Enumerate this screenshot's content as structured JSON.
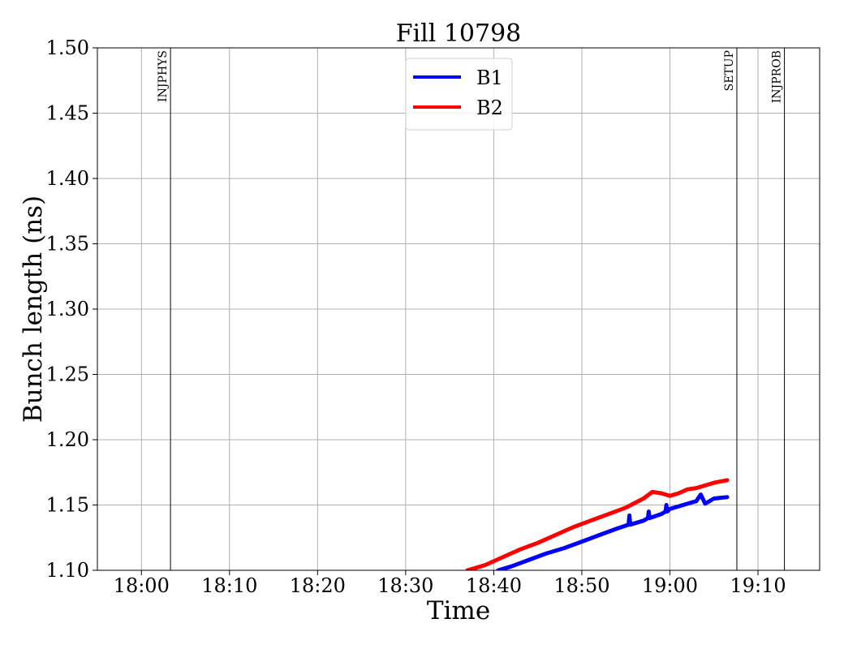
{
  "chart_data": {
    "type": "line",
    "title": "Fill 10798",
    "xlabel": "Time",
    "ylabel": "Bunch length (ns)",
    "x_range": [
      "17:55",
      "19:17"
    ],
    "ylim": [
      1.1,
      1.5
    ],
    "x_ticks": [
      "18:00",
      "18:10",
      "18:20",
      "18:30",
      "18:40",
      "18:50",
      "19:00",
      "19:10"
    ],
    "y_ticks": [
      "1.10",
      "1.15",
      "1.20",
      "1.25",
      "1.30",
      "1.35",
      "1.40",
      "1.45",
      "1.50"
    ],
    "grid": true,
    "legend_position": "top-center",
    "events": [
      {
        "label": "INJPHYS",
        "time": "18:03.3"
      },
      {
        "label": "SETUP",
        "time": "19:07.6"
      },
      {
        "label": "INJPROB",
        "time": "19:13.0"
      }
    ],
    "series": [
      {
        "name": "B1",
        "color": "#0000ff",
        "points": [
          [
            "18:40.5",
            1.1
          ],
          [
            "18:42",
            1.103
          ],
          [
            "18:44",
            1.108
          ],
          [
            "18:46",
            1.113
          ],
          [
            "18:48",
            1.117
          ],
          [
            "18:50",
            1.122
          ],
          [
            "18:52",
            1.127
          ],
          [
            "18:54",
            1.132
          ],
          [
            "18:55.3",
            1.135
          ],
          [
            "18:55.4",
            1.142
          ],
          [
            "18:55.5",
            1.135
          ],
          [
            "18:57",
            1.138
          ],
          [
            "18:57.5",
            1.14
          ],
          [
            "18:57.6",
            1.145
          ],
          [
            "18:57.7",
            1.14
          ],
          [
            "18:59",
            1.143
          ],
          [
            "18:59.5",
            1.145
          ],
          [
            "18:59.6",
            1.15
          ],
          [
            "18:59.7",
            1.145
          ],
          [
            "19:00",
            1.147
          ],
          [
            "19:01",
            1.149
          ],
          [
            "19:02",
            1.151
          ],
          [
            "19:03",
            1.153
          ],
          [
            "19:03.5",
            1.158
          ],
          [
            "19:04",
            1.151
          ],
          [
            "19:05",
            1.155
          ],
          [
            "19:06.5",
            1.156
          ]
        ]
      },
      {
        "name": "B2",
        "color": "#ff0000",
        "points": [
          [
            "18:37",
            1.1
          ],
          [
            "18:39",
            1.104
          ],
          [
            "18:41",
            1.11
          ],
          [
            "18:43",
            1.116
          ],
          [
            "18:45",
            1.121
          ],
          [
            "18:47",
            1.127
          ],
          [
            "18:49",
            1.133
          ],
          [
            "18:51",
            1.138
          ],
          [
            "18:53",
            1.143
          ],
          [
            "18:55",
            1.148
          ],
          [
            "18:57",
            1.155
          ],
          [
            "18:58",
            1.16
          ],
          [
            "18:59",
            1.159
          ],
          [
            "19:00",
            1.157
          ],
          [
            "19:01",
            1.159
          ],
          [
            "19:02",
            1.162
          ],
          [
            "19:03",
            1.163
          ],
          [
            "19:04",
            1.165
          ],
          [
            "19:05",
            1.167
          ],
          [
            "19:06.5",
            1.169
          ]
        ]
      }
    ]
  }
}
